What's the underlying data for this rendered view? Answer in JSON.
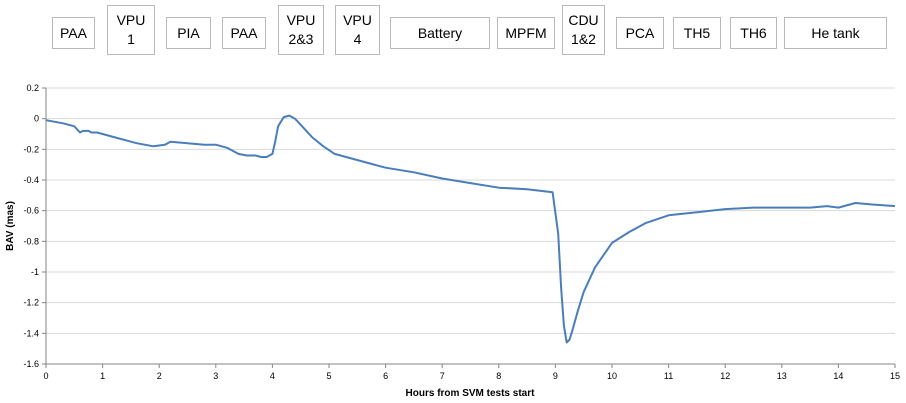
{
  "test_sequence": [
    {
      "label": "PAA"
    },
    {
      "label": "VPU\n1"
    },
    {
      "label": "PIA"
    },
    {
      "label": "PAA"
    },
    {
      "label": "VPU\n2&3"
    },
    {
      "label": "VPU\n4"
    },
    {
      "label": "Battery"
    },
    {
      "label": "MPFM"
    },
    {
      "label": "CDU\n1&2"
    },
    {
      "label": "PCA"
    },
    {
      "label": "TH5"
    },
    {
      "label": "TH6"
    },
    {
      "label": "He tank"
    }
  ],
  "chart_data": {
    "type": "line",
    "xlabel": "Hours from SVM tests start",
    "ylabel": "BAV (mas)",
    "xlim": [
      0,
      15
    ],
    "ylim": [
      -1.6,
      0.2
    ],
    "x_ticks": [
      "0",
      "1",
      "2",
      "3",
      "4",
      "5",
      "6",
      "7",
      "8",
      "9",
      "10",
      "11",
      "12",
      "13",
      "14",
      "15"
    ],
    "y_ticks": [
      "0.2",
      "0",
      "-0.2",
      "-0.4",
      "-0.6",
      "-0.8",
      "-1",
      "-1.2",
      "-1.4",
      "-1.6"
    ],
    "grid": "horizontal",
    "line_color": "#4a7ebb",
    "series": [
      {
        "x": [
          0,
          0.3,
          0.5,
          0.6,
          0.65,
          0.75,
          0.8,
          0.85,
          0.9,
          1.0,
          1.3,
          1.6,
          1.9,
          2.1,
          2.2,
          2.5,
          2.8,
          3.0,
          3.2,
          3.4,
          3.55,
          3.7,
          3.8,
          3.85,
          3.9,
          4.0,
          4.05,
          4.1,
          4.2,
          4.3,
          4.4,
          4.5,
          4.7,
          4.9,
          5.1,
          5.4,
          5.7,
          6.0,
          6.5,
          7.0,
          7.5,
          8.0,
          8.5,
          8.95,
          9.05,
          9.1,
          9.15,
          9.2,
          9.25,
          9.3,
          9.4,
          9.5,
          9.7,
          10.0,
          10.3,
          10.6,
          11.0,
          11.5,
          12.0,
          12.5,
          13.0,
          13.5,
          13.8,
          14.0,
          14.3,
          14.6,
          15.0
        ],
        "y": [
          -0.01,
          -0.03,
          -0.05,
          -0.09,
          -0.08,
          -0.08,
          -0.09,
          -0.09,
          -0.09,
          -0.1,
          -0.13,
          -0.16,
          -0.18,
          -0.17,
          -0.15,
          -0.16,
          -0.17,
          -0.17,
          -0.19,
          -0.23,
          -0.24,
          -0.24,
          -0.25,
          -0.25,
          -0.25,
          -0.23,
          -0.15,
          -0.05,
          0.01,
          0.02,
          0.0,
          -0.04,
          -0.12,
          -0.18,
          -0.23,
          -0.26,
          -0.29,
          -0.32,
          -0.35,
          -0.39,
          -0.42,
          -0.45,
          -0.46,
          -0.48,
          -0.75,
          -1.1,
          -1.35,
          -1.46,
          -1.44,
          -1.38,
          -1.25,
          -1.13,
          -0.97,
          -0.81,
          -0.74,
          -0.68,
          -0.63,
          -0.61,
          -0.59,
          -0.58,
          -0.58,
          -0.58,
          -0.57,
          -0.58,
          -0.55,
          -0.56,
          -0.57
        ]
      }
    ]
  }
}
